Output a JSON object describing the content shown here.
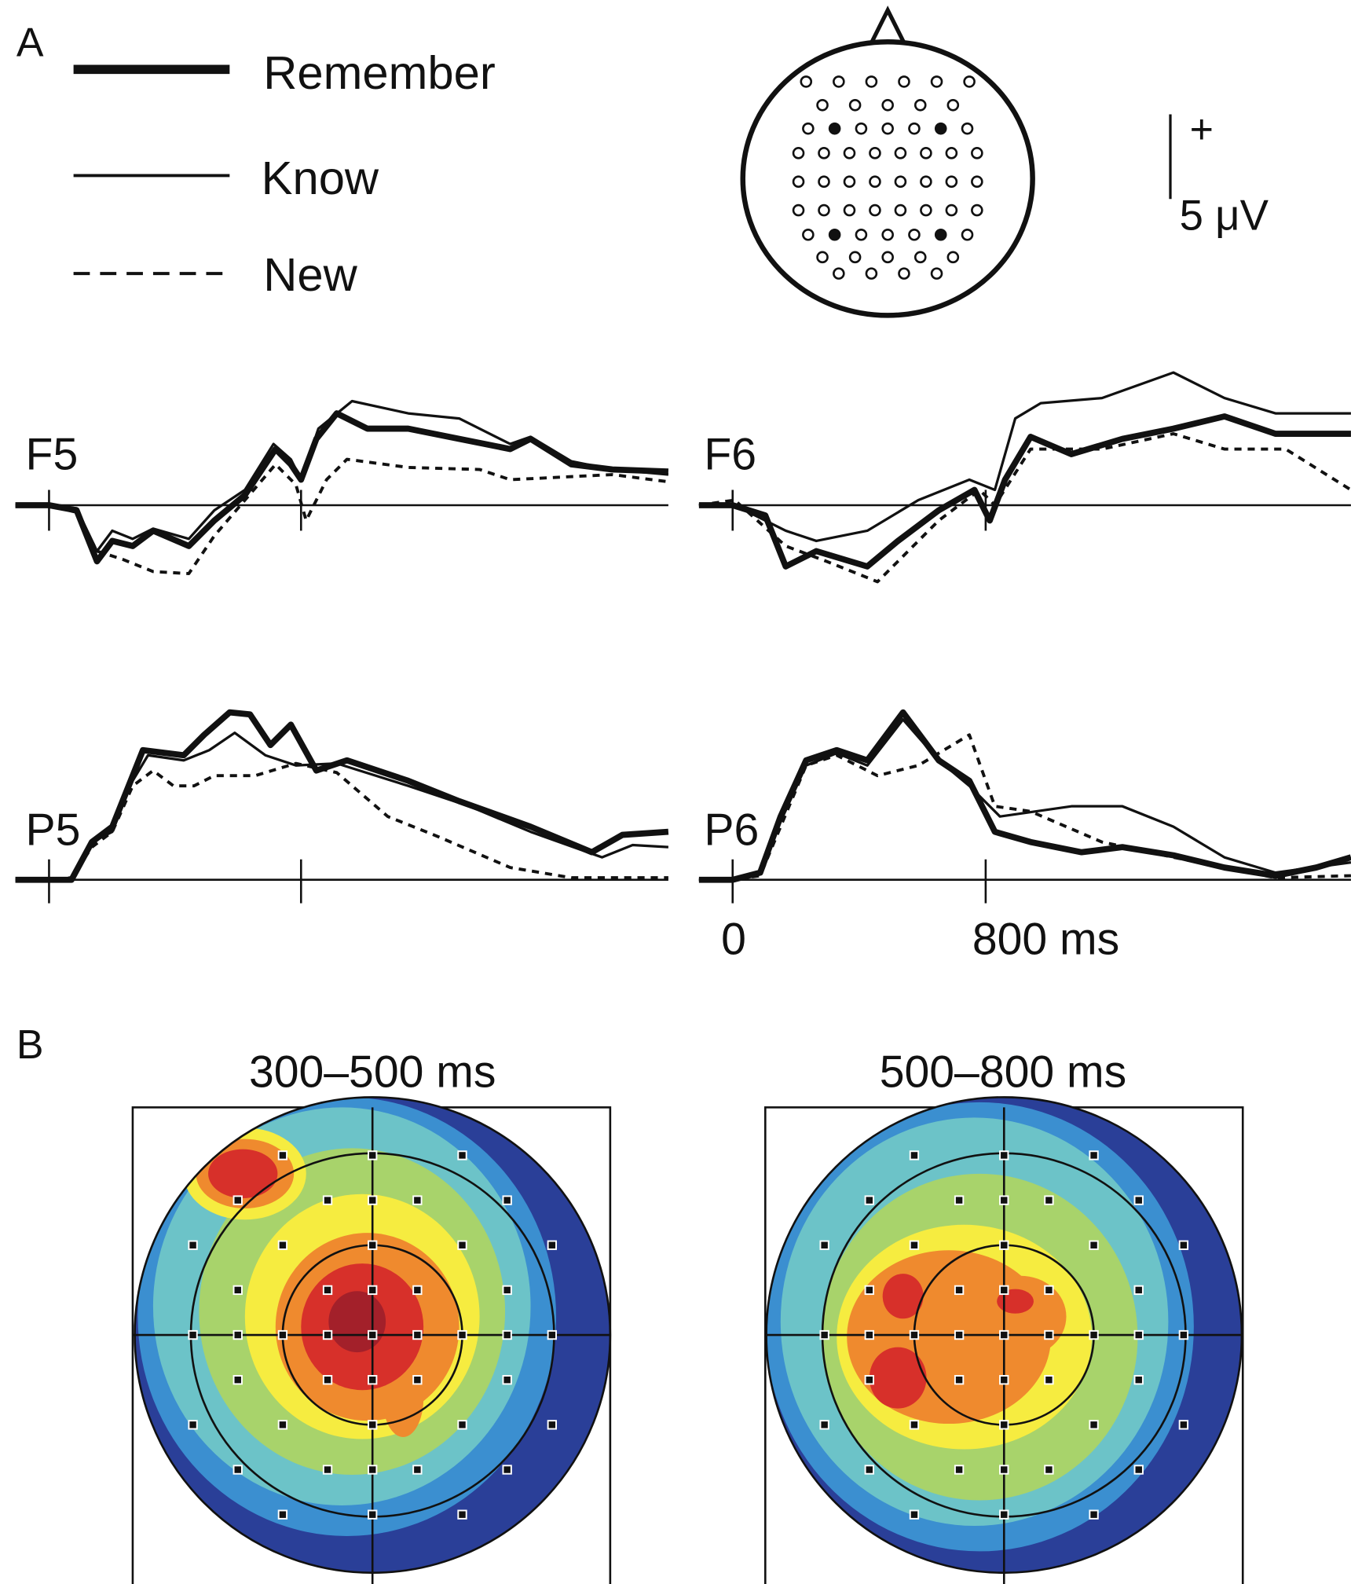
{
  "panel_a": {
    "label": "A",
    "legend": [
      "Remember",
      "Know",
      "New"
    ],
    "scale_bar": {
      "sign": "+",
      "amplitude": "5 μV"
    },
    "channels": [
      "F5",
      "F6",
      "P5",
      "P6"
    ],
    "time_labels": [
      "0",
      "800 ms"
    ]
  },
  "panel_b": {
    "label": "B",
    "maps": [
      {
        "title": "300–500 ms"
      },
      {
        "title": "500–800 ms"
      }
    ]
  }
}
